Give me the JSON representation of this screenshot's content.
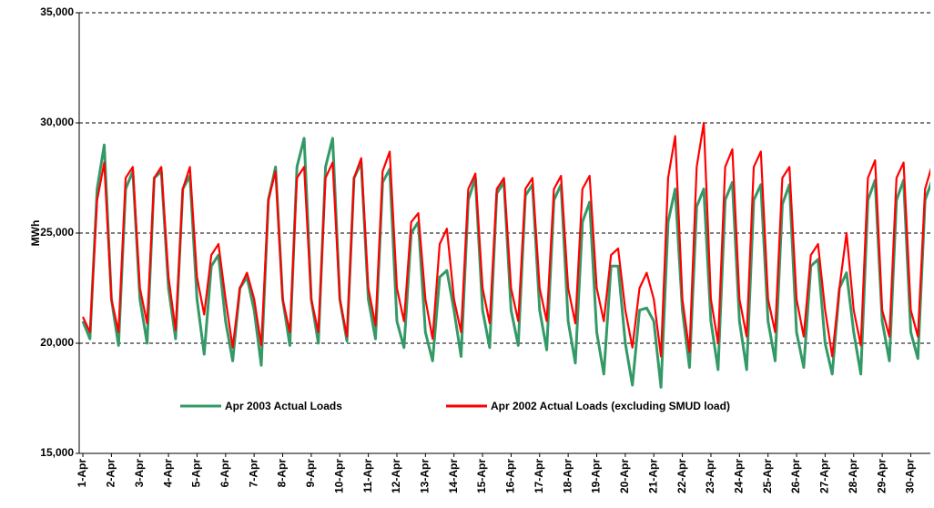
{
  "chart_data": {
    "type": "line",
    "y_label": "MWh",
    "categories": [
      "1-Apr",
      null,
      null,
      null,
      "2-Apr",
      null,
      null,
      null,
      "3-Apr",
      null,
      null,
      null,
      "4-Apr",
      null,
      null,
      null,
      "5-Apr",
      null,
      null,
      null,
      "6-Apr",
      null,
      null,
      null,
      "7-Apr",
      null,
      null,
      null,
      "8-Apr",
      null,
      null,
      null,
      "9-Apr",
      null,
      null,
      null,
      "10-Apr",
      null,
      null,
      null,
      "11-Apr",
      null,
      null,
      null,
      "12-Apr",
      null,
      null,
      null,
      "13-Apr",
      null,
      null,
      null,
      "14-Apr",
      null,
      null,
      null,
      "15-Apr",
      null,
      null,
      null,
      "16-Apr",
      null,
      null,
      null,
      "17-Apr",
      null,
      null,
      null,
      "18-Apr",
      null,
      null,
      null,
      "19-Apr",
      null,
      null,
      null,
      "20-Apr",
      null,
      null,
      null,
      "21-Apr",
      null,
      null,
      null,
      "22-Apr",
      null,
      null,
      null,
      "23-Apr",
      null,
      null,
      null,
      "24-Apr",
      null,
      null,
      null,
      "25-Apr",
      null,
      null,
      null,
      "26-Apr",
      null,
      null,
      null,
      "27-Apr",
      null,
      null,
      null,
      "28-Apr",
      null,
      null,
      null,
      "29-Apr",
      null,
      null,
      null,
      "30-Apr",
      null,
      null,
      null
    ],
    "series": [
      {
        "name": "Apr 2003 Actual Loads",
        "color": "#339966",
        "values": [
          21000,
          20200,
          27000,
          29000,
          22000,
          19900,
          27000,
          27800,
          22000,
          20000,
          27500,
          27800,
          22500,
          20200,
          27000,
          27600,
          22000,
          19500,
          23500,
          24000,
          21000,
          19200,
          22500,
          23000,
          21500,
          19000,
          26500,
          28000,
          22000,
          19900,
          28000,
          29300,
          22000,
          20000,
          28000,
          29300,
          22000,
          20100,
          27500,
          28200,
          22000,
          20200,
          27300,
          27900,
          21000,
          19800,
          25000,
          25500,
          20500,
          19200,
          23000,
          23300,
          21500,
          19400,
          26500,
          27500,
          21500,
          19800,
          26800,
          27300,
          21500,
          19900,
          26700,
          27200,
          21500,
          19700,
          26500,
          27200,
          21000,
          19100,
          25500,
          26400,
          20500,
          18600,
          23500,
          23500,
          20000,
          18100,
          21500,
          21600,
          21000,
          18000,
          25500,
          27000,
          21500,
          18900,
          26200,
          27000,
          21000,
          18800,
          26500,
          27300,
          21000,
          18800,
          26500,
          27200,
          21000,
          19200,
          26300,
          27200,
          20500,
          18900,
          23500,
          23800,
          20000,
          18600,
          22500,
          23200,
          20500,
          18600,
          26500,
          27400,
          21000,
          19200,
          26500,
          27400,
          20500,
          19300,
          26500,
          27400
        ]
      },
      {
        "name": "Apr 2002 Actual Loads (excluding SMUD load)",
        "color": "#ff0000",
        "values": [
          21200,
          20500,
          26500,
          28200,
          22000,
          20500,
          27500,
          28000,
          22500,
          20900,
          27500,
          28000,
          23000,
          20600,
          27000,
          28000,
          23000,
          21300,
          24000,
          24500,
          22000,
          19800,
          22500,
          23200,
          22000,
          19900,
          26500,
          27800,
          22000,
          20500,
          27500,
          28000,
          22000,
          20500,
          27500,
          28200,
          22000,
          20300,
          27500,
          28400,
          22500,
          20800,
          27800,
          28700,
          22500,
          21000,
          25500,
          25900,
          22000,
          20200,
          24500,
          25200,
          22000,
          20500,
          27000,
          27700,
          22500,
          20900,
          27000,
          27500,
          22500,
          21000,
          27000,
          27500,
          22500,
          21000,
          27000,
          27600,
          22500,
          20900,
          27000,
          27600,
          22500,
          21000,
          24000,
          24300,
          21500,
          19800,
          22500,
          23200,
          22000,
          19400,
          27500,
          29400,
          22000,
          19600,
          28000,
          30000,
          22000,
          20000,
          28000,
          28800,
          22000,
          20300,
          28000,
          28700,
          22000,
          20500,
          27500,
          28000,
          22000,
          20300,
          24000,
          24500,
          21500,
          19400,
          22500,
          25000,
          21500,
          19900,
          27500,
          28300,
          21500,
          20300,
          27500,
          28200,
          21500,
          20300,
          27000,
          28100
        ]
      }
    ],
    "ylim": [
      15000,
      35000
    ],
    "yticks": [
      {
        "value": 15000,
        "label": "15,000"
      },
      {
        "value": 20000,
        "label": "20,000"
      },
      {
        "value": 25000,
        "label": "25,000"
      },
      {
        "value": 30000,
        "label": "30,000"
      },
      {
        "value": 35000,
        "label": "35,000"
      }
    ],
    "grid": true
  }
}
